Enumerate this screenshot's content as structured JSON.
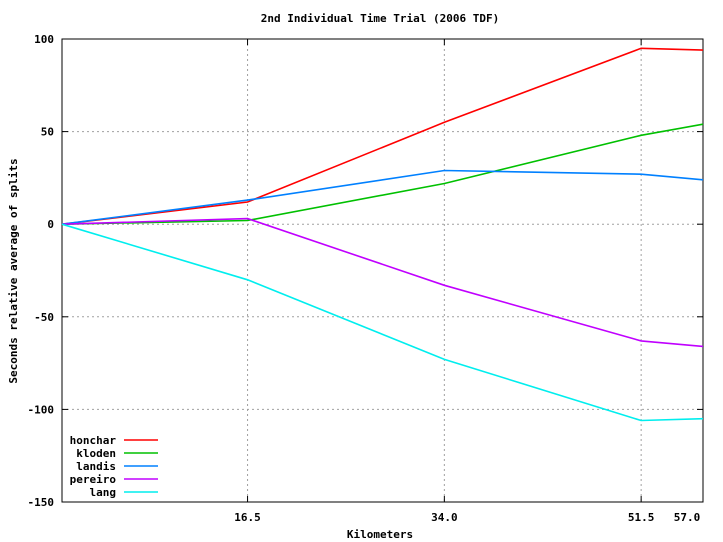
{
  "chart_data": {
    "type": "line",
    "title": "2nd Individual Time Trial (2006 TDF)",
    "xlabel": "Kilometers",
    "ylabel": "Seconds relative average of splits",
    "xlim": [
      0,
      57.0
    ],
    "ylim": [
      -150,
      100
    ],
    "xticks": [
      {
        "value": 16.5,
        "label": "16.5"
      },
      {
        "value": 34.0,
        "label": "34.0"
      },
      {
        "value": 51.5,
        "label": "51.5"
      },
      {
        "value": 57.0,
        "label": "57.0"
      }
    ],
    "yticks": [
      {
        "value": 100,
        "label": "100"
      },
      {
        "value": 50,
        "label": "50"
      },
      {
        "value": 0,
        "label": "0"
      },
      {
        "value": -50,
        "label": "-50"
      },
      {
        "value": -100,
        "label": "-100"
      },
      {
        "value": -150,
        "label": "-150"
      }
    ],
    "grid": true,
    "legend_position": "bottom-left",
    "x": [
      0,
      16.5,
      34.0,
      51.5,
      57.0
    ],
    "series": [
      {
        "name": "honchar",
        "color": "#ff0000",
        "values": [
          0,
          12,
          55,
          95,
          94
        ]
      },
      {
        "name": "kloden",
        "color": "#00c000",
        "values": [
          0,
          2,
          22,
          48,
          54
        ]
      },
      {
        "name": "landis",
        "color": "#0080ff",
        "values": [
          0,
          13,
          29,
          27,
          24
        ]
      },
      {
        "name": "pereiro",
        "color": "#c000ff",
        "values": [
          0,
          3,
          -33,
          -63,
          -66
        ]
      },
      {
        "name": "lang",
        "color": "#00eeee",
        "values": [
          0,
          -30,
          -73,
          -106,
          -105
        ]
      }
    ]
  }
}
